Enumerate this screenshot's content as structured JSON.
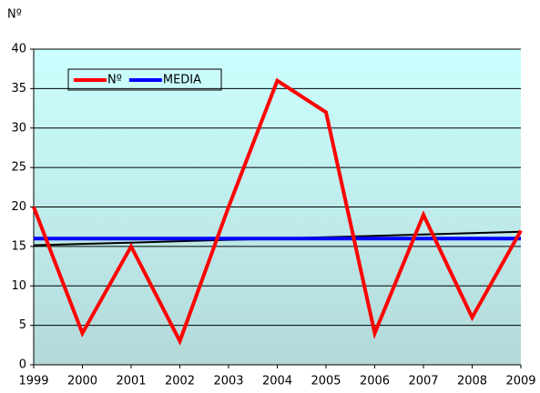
{
  "chart_data": {
    "type": "line",
    "y_axis_label": "Nº",
    "categories": [
      "1999",
      "2000",
      "2001",
      "2002",
      "2003",
      "2004",
      "2005",
      "2006",
      "2007",
      "2008",
      "2009"
    ],
    "series": [
      {
        "name": "Nº",
        "color": "#ff0000",
        "values": [
          20,
          4,
          15,
          3,
          20,
          36,
          32,
          4,
          19,
          6,
          17
        ]
      },
      {
        "name": "MEDIA",
        "color": "#0000ff",
        "values": [
          16,
          16,
          16,
          16,
          16,
          16,
          16,
          16,
          16,
          16,
          16
        ]
      },
      {
        "color": "#000000",
        "values": [
          15.14,
          15.31,
          15.48,
          15.66,
          15.83,
          16.0,
          16.17,
          16.34,
          16.52,
          16.69,
          16.86
        ]
      }
    ],
    "ylim": [
      0,
      40
    ],
    "yticks": [
      0,
      5,
      10,
      15,
      20,
      25,
      30,
      35,
      40
    ],
    "grid": true,
    "legend": "top-left"
  }
}
